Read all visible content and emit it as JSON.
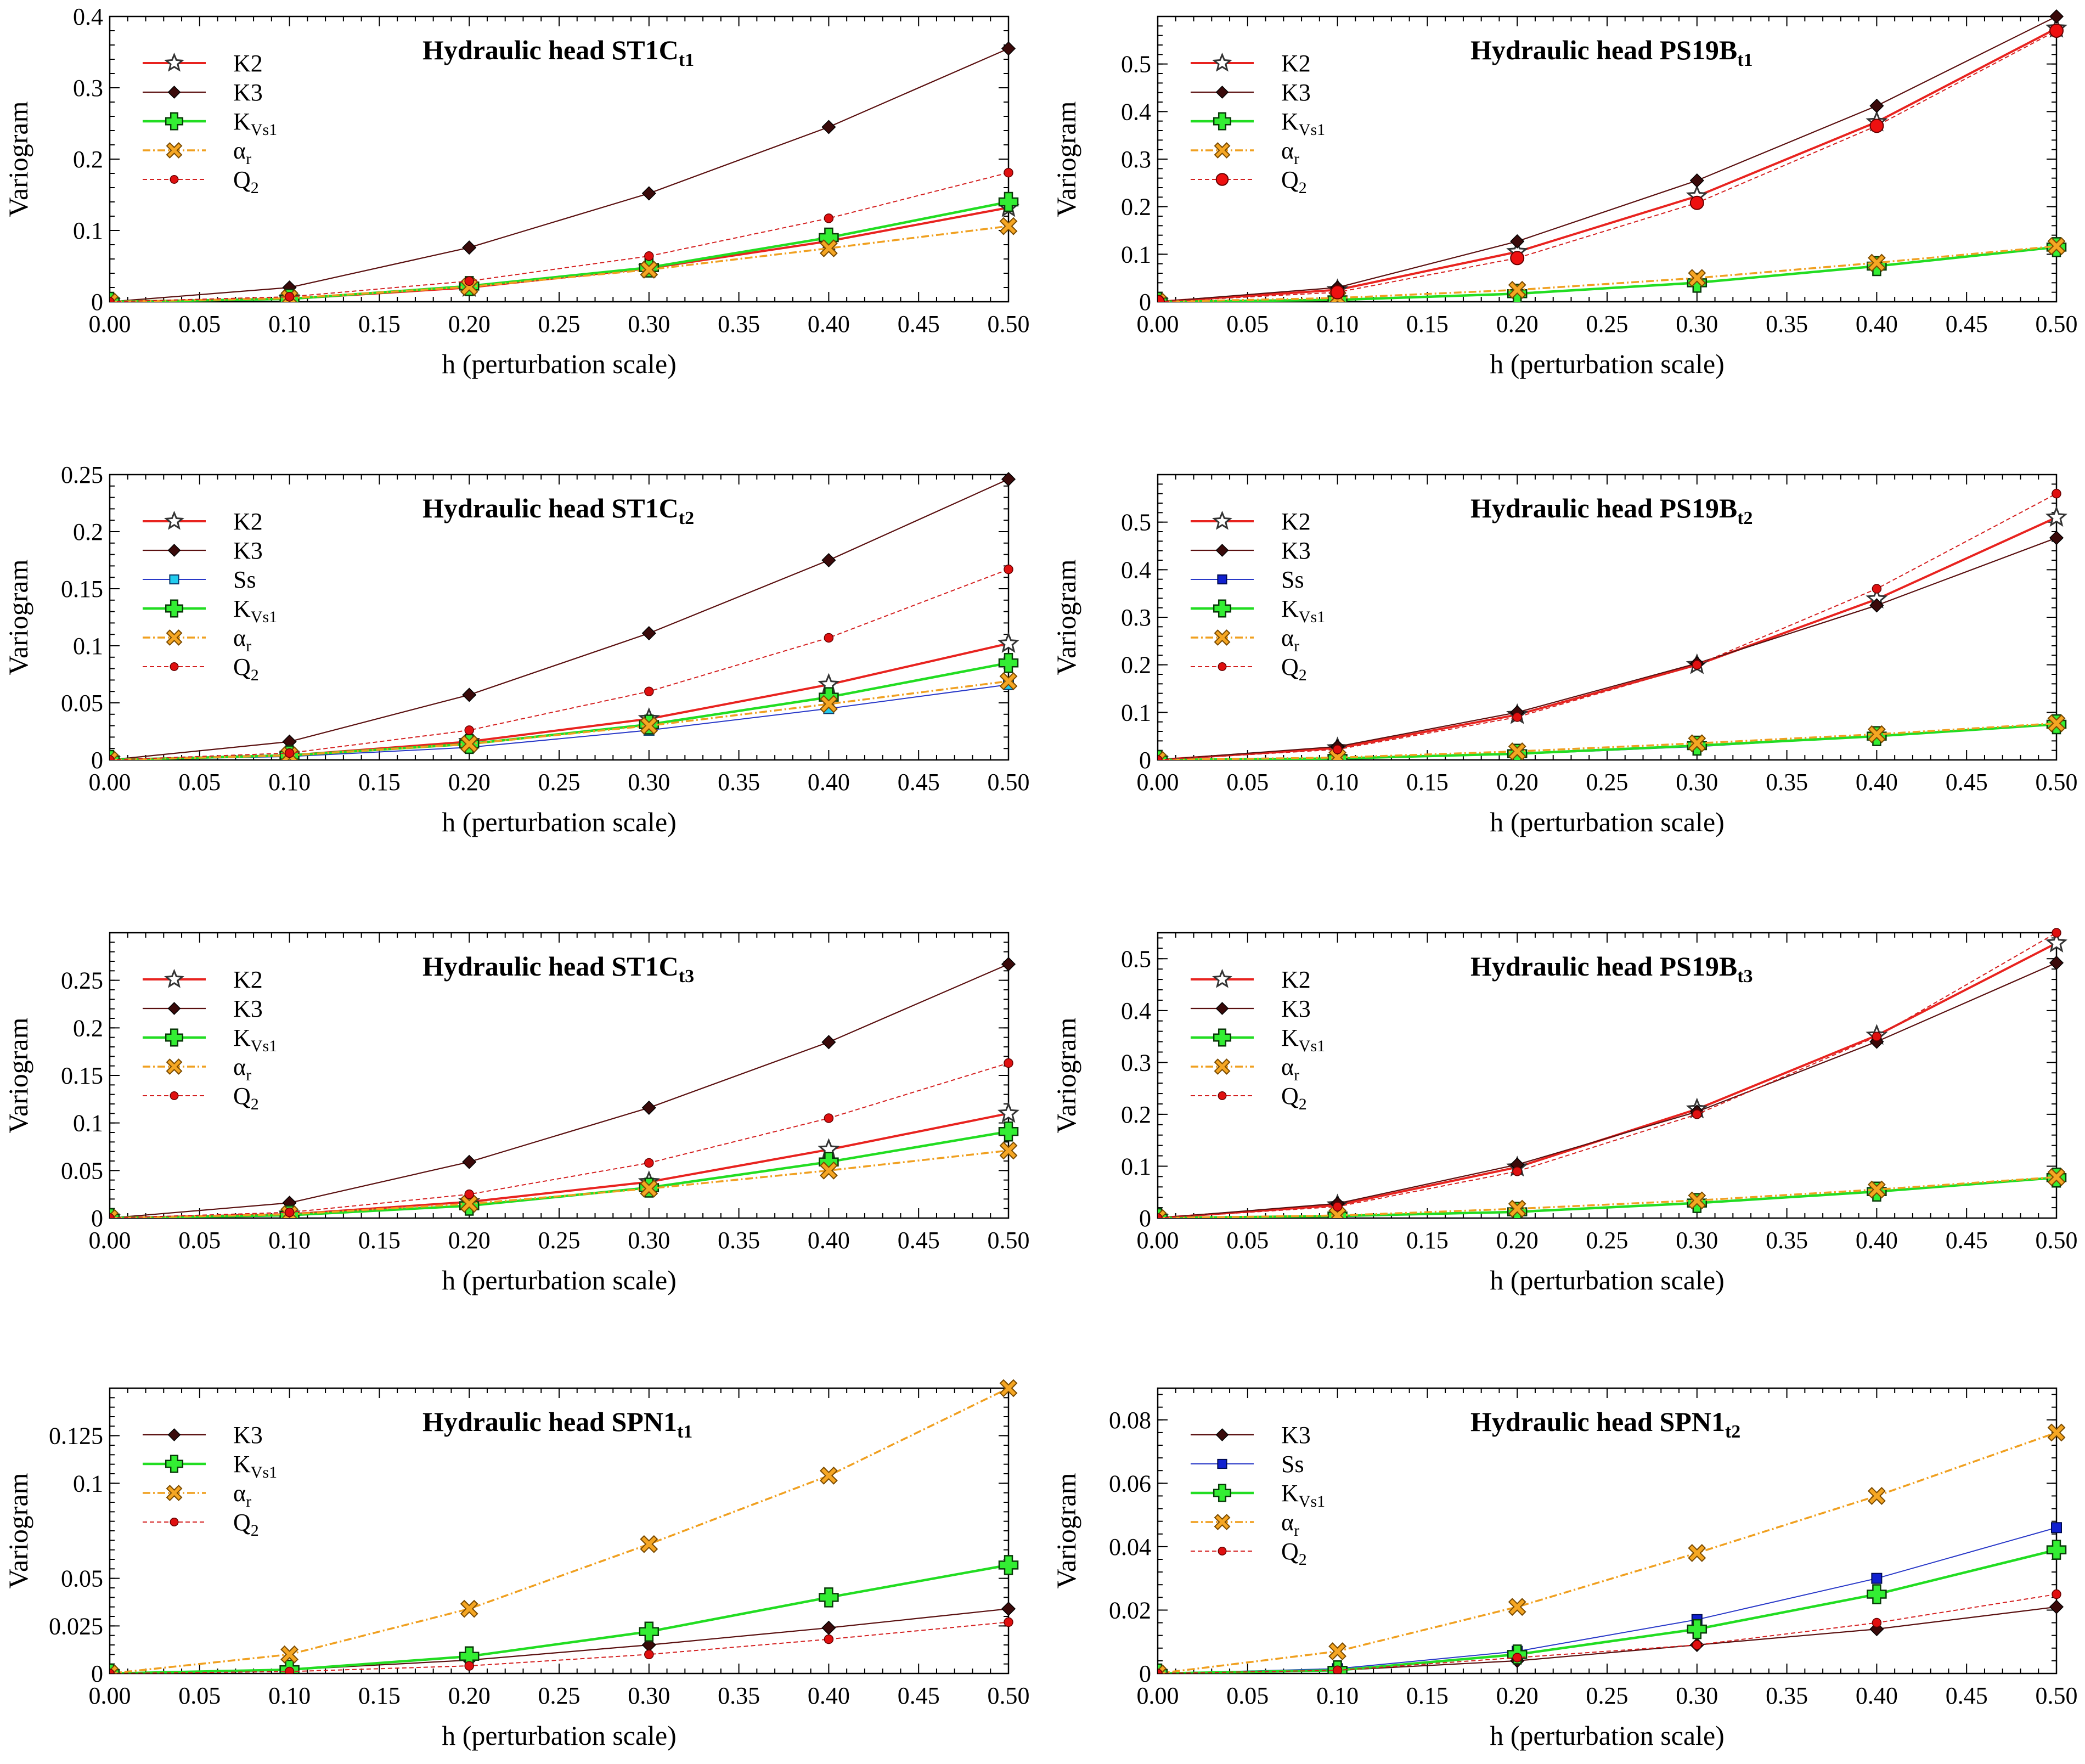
{
  "chart_data": [
    {
      "type": "line",
      "title": {
        "main": "Hydraulic head ST1C",
        "sub": "t1"
      },
      "xlabel": "h (perturbation scale)",
      "ylabel": "Variogram",
      "xlim": [
        0,
        0.5
      ],
      "ylim": [
        0,
        0.4
      ],
      "xticks": [
        "0.00",
        "0.05",
        "0.10",
        "0.15",
        "0.20",
        "0.25",
        "0.30",
        "0.35",
        "0.40",
        "0.45",
        "0.50"
      ],
      "yticks": [
        {
          "v": 0,
          "label": "0"
        },
        {
          "v": 0.1,
          "label": "0.1"
        },
        {
          "v": 0.2,
          "label": "0.2"
        },
        {
          "v": 0.3,
          "label": "0.3"
        },
        {
          "v": 0.4,
          "label": "0.4"
        }
      ],
      "x": [
        0,
        0.1,
        0.2,
        0.3,
        0.4,
        0.5
      ],
      "legend_position": "top-left",
      "series": [
        {
          "name": "K2",
          "sub": "",
          "color": "#e8231f",
          "marker": "star",
          "values": [
            0,
            0.004,
            0.02,
            0.047,
            0.085,
            0.132
          ]
        },
        {
          "name": "K3",
          "sub": "",
          "color": "#5a1010",
          "marker": "diamond",
          "values": [
            0,
            0.02,
            0.076,
            0.152,
            0.245,
            0.355
          ]
        },
        {
          "name": "K",
          "sub": "Vs1",
          "color": "#22dd22",
          "marker": "plus",
          "values": [
            0,
            0.004,
            0.022,
            0.048,
            0.09,
            0.14
          ]
        },
        {
          "name": "α",
          "sub": "r",
          "color": "#f0a020",
          "marker": "xmark",
          "values": [
            0,
            0.005,
            0.021,
            0.045,
            0.075,
            0.106
          ]
        },
        {
          "name": "Q",
          "sub": "2",
          "color": "#d42020",
          "marker": "dot",
          "values": [
            0,
            0.007,
            0.029,
            0.064,
            0.117,
            0.181
          ]
        }
      ]
    },
    {
      "type": "line",
      "title": {
        "main": "Hydraulic head PS19B",
        "sub": "t1"
      },
      "xlabel": "h (perturbation scale)",
      "ylabel": "Variogram",
      "xlim": [
        0,
        0.5
      ],
      "ylim": [
        0,
        0.6
      ],
      "xticks": [
        "0.00",
        "0.05",
        "0.10",
        "0.15",
        "0.20",
        "0.25",
        "0.30",
        "0.35",
        "0.40",
        "0.45",
        "0.50"
      ],
      "yticks": [
        {
          "v": 0,
          "label": "0"
        },
        {
          "v": 0.1,
          "label": "0.1"
        },
        {
          "v": 0.2,
          "label": "0.2"
        },
        {
          "v": 0.3,
          "label": "0.3"
        },
        {
          "v": 0.4,
          "label": "0.4"
        },
        {
          "v": 0.5,
          "label": "0.5"
        }
      ],
      "x": [
        0,
        0.1,
        0.2,
        0.3,
        0.4,
        0.5
      ],
      "legend_position": "top-left",
      "series": [
        {
          "name": "K2",
          "sub": "",
          "color": "#e8231f",
          "marker": "star",
          "values": [
            0,
            0.025,
            0.105,
            0.222,
            0.378,
            0.575
          ]
        },
        {
          "name": "K3",
          "sub": "",
          "color": "#5a1010",
          "marker": "diamond",
          "values": [
            0,
            0.03,
            0.127,
            0.255,
            0.412,
            0.6
          ]
        },
        {
          "name": "K",
          "sub": "Vs1",
          "color": "#22dd22",
          "marker": "plus",
          "values": [
            0,
            0.004,
            0.017,
            0.04,
            0.075,
            0.115
          ]
        },
        {
          "name": "α",
          "sub": "r",
          "color": "#f0a020",
          "marker": "xmark",
          "values": [
            0,
            0.008,
            0.025,
            0.05,
            0.082,
            0.117
          ]
        },
        {
          "name": "Q",
          "sub": "2",
          "color": "#d42020",
          "marker": "bigdot",
          "values": [
            0,
            0.02,
            0.092,
            0.208,
            0.37,
            0.57
          ]
        }
      ]
    },
    {
      "type": "line",
      "title": {
        "main": "Hydraulic head ST1C",
        "sub": "t2"
      },
      "xlabel": "h (perturbation scale)",
      "ylabel": "Variogram",
      "xlim": [
        0,
        0.5
      ],
      "ylim": [
        0,
        0.25
      ],
      "xticks": [
        "0.00",
        "0.05",
        "0.10",
        "0.15",
        "0.20",
        "0.25",
        "0.30",
        "0.35",
        "0.40",
        "0.45",
        "0.50"
      ],
      "yticks": [
        {
          "v": 0,
          "label": "0"
        },
        {
          "v": 0.05,
          "label": "0.05"
        },
        {
          "v": 0.1,
          "label": "0.1"
        },
        {
          "v": 0.15,
          "label": "0.15"
        },
        {
          "v": 0.2,
          "label": "0.2"
        },
        {
          "v": 0.25,
          "label": "0.25"
        }
      ],
      "x": [
        0,
        0.1,
        0.2,
        0.3,
        0.4,
        0.5
      ],
      "legend_position": "top-left",
      "series": [
        {
          "name": "K2",
          "sub": "",
          "color": "#e8231f",
          "marker": "star",
          "values": [
            0,
            0.004,
            0.016,
            0.036,
            0.066,
            0.102
          ]
        },
        {
          "name": "K3",
          "sub": "",
          "color": "#5a1010",
          "marker": "diamond",
          "values": [
            0,
            0.016,
            0.057,
            0.111,
            0.175,
            0.246
          ]
        },
        {
          "name": "Ss",
          "sub": "",
          "color": "#2838c8",
          "marker": "cyansquare",
          "values": [
            0,
            0.003,
            0.011,
            0.026,
            0.045,
            0.066
          ]
        },
        {
          "name": "K",
          "sub": "Vs1",
          "color": "#22dd22",
          "marker": "plus",
          "values": [
            0,
            0.004,
            0.014,
            0.031,
            0.055,
            0.085
          ]
        },
        {
          "name": "α",
          "sub": "r",
          "color": "#f0a020",
          "marker": "xmark",
          "values": [
            0,
            0.004,
            0.014,
            0.03,
            0.049,
            0.069
          ]
        },
        {
          "name": "Q",
          "sub": "2",
          "color": "#d42020",
          "marker": "dot",
          "values": [
            0,
            0.006,
            0.026,
            0.06,
            0.107,
            0.167
          ]
        }
      ]
    },
    {
      "type": "line",
      "title": {
        "main": "Hydraulic head PS19B",
        "sub": "t2"
      },
      "xlabel": "h (perturbation scale)",
      "ylabel": "Variogram",
      "xlim": [
        0,
        0.5
      ],
      "ylim": [
        0,
        0.6
      ],
      "xticks": [
        "0.00",
        "0.05",
        "0.10",
        "0.15",
        "0.20",
        "0.25",
        "0.30",
        "0.35",
        "0.40",
        "0.45",
        "0.50"
      ],
      "yticks": [
        {
          "v": 0,
          "label": "0"
        },
        {
          "v": 0.1,
          "label": "0.1"
        },
        {
          "v": 0.2,
          "label": "0.2"
        },
        {
          "v": 0.3,
          "label": "0.3"
        },
        {
          "v": 0.4,
          "label": "0.4"
        },
        {
          "v": 0.5,
          "label": "0.5"
        }
      ],
      "x": [
        0,
        0.1,
        0.2,
        0.3,
        0.4,
        0.5
      ],
      "legend_position": "top-left",
      "series": [
        {
          "name": "K2",
          "sub": "",
          "color": "#e8231f",
          "marker": "star",
          "values": [
            0,
            0.025,
            0.095,
            0.2,
            0.338,
            0.51
          ]
        },
        {
          "name": "K3",
          "sub": "",
          "color": "#5a1010",
          "marker": "diamond",
          "values": [
            0,
            0.028,
            0.1,
            0.203,
            0.325,
            0.467
          ]
        },
        {
          "name": "Ss",
          "sub": "",
          "color": "#2838c8",
          "marker": "bluesquare",
          "values": [
            0,
            0.003,
            0.012,
            0.028,
            0.05,
            0.075
          ]
        },
        {
          "name": "K",
          "sub": "Vs1",
          "color": "#22dd22",
          "marker": "plus",
          "values": [
            0,
            0.003,
            0.013,
            0.03,
            0.05,
            0.075
          ]
        },
        {
          "name": "α",
          "sub": "r",
          "color": "#f0a020",
          "marker": "xmark",
          "values": [
            0,
            0.005,
            0.018,
            0.035,
            0.054,
            0.077
          ]
        },
        {
          "name": "Q",
          "sub": "2",
          "color": "#d42020",
          "marker": "dot",
          "values": [
            0,
            0.022,
            0.09,
            0.2,
            0.36,
            0.56
          ]
        }
      ]
    },
    {
      "type": "line",
      "title": {
        "main": "Hydraulic head ST1C",
        "sub": "t3"
      },
      "xlabel": "h (perturbation scale)",
      "ylabel": "Variogram",
      "xlim": [
        0,
        0.5
      ],
      "ylim": [
        0,
        0.3
      ],
      "xticks": [
        "0.00",
        "0.05",
        "0.10",
        "0.15",
        "0.20",
        "0.25",
        "0.30",
        "0.35",
        "0.40",
        "0.45",
        "0.50"
      ],
      "yticks": [
        {
          "v": 0,
          "label": "0"
        },
        {
          "v": 0.05,
          "label": "0.05"
        },
        {
          "v": 0.1,
          "label": "0.1"
        },
        {
          "v": 0.15,
          "label": "0.15"
        },
        {
          "v": 0.2,
          "label": "0.2"
        },
        {
          "v": 0.25,
          "label": "0.25"
        }
      ],
      "x": [
        0,
        0.1,
        0.2,
        0.3,
        0.4,
        0.5
      ],
      "legend_position": "top-left",
      "series": [
        {
          "name": "K2",
          "sub": "",
          "color": "#e8231f",
          "marker": "star",
          "values": [
            0,
            0.004,
            0.017,
            0.038,
            0.072,
            0.11
          ]
        },
        {
          "name": "K3",
          "sub": "",
          "color": "#5a1010",
          "marker": "diamond",
          "values": [
            0,
            0.016,
            0.059,
            0.116,
            0.185,
            0.267
          ]
        },
        {
          "name": "K",
          "sub": "Vs1",
          "color": "#22dd22",
          "marker": "plus",
          "values": [
            0,
            0.003,
            0.013,
            0.032,
            0.059,
            0.091
          ]
        },
        {
          "name": "α",
          "sub": "r",
          "color": "#f0a020",
          "marker": "xmark",
          "values": [
            0,
            0.004,
            0.015,
            0.031,
            0.05,
            0.071
          ]
        },
        {
          "name": "Q",
          "sub": "2",
          "color": "#d42020",
          "marker": "dot",
          "values": [
            0,
            0.006,
            0.025,
            0.058,
            0.105,
            0.163
          ]
        }
      ]
    },
    {
      "type": "line",
      "title": {
        "main": "Hydraulic head PS19B",
        "sub": "t3"
      },
      "xlabel": "h (perturbation scale)",
      "ylabel": "Variogram",
      "xlim": [
        0,
        0.5
      ],
      "ylim": [
        0,
        0.55
      ],
      "xticks": [
        "0.00",
        "0.05",
        "0.10",
        "0.15",
        "0.20",
        "0.25",
        "0.30",
        "0.35",
        "0.40",
        "0.45",
        "0.50"
      ],
      "yticks": [
        {
          "v": 0,
          "label": "0"
        },
        {
          "v": 0.1,
          "label": "0.1"
        },
        {
          "v": 0.2,
          "label": "0.2"
        },
        {
          "v": 0.3,
          "label": "0.3"
        },
        {
          "v": 0.4,
          "label": "0.4"
        },
        {
          "v": 0.5,
          "label": "0.5"
        }
      ],
      "x": [
        0,
        0.1,
        0.2,
        0.3,
        0.4,
        0.5
      ],
      "legend_position": "top-left",
      "series": [
        {
          "name": "K2",
          "sub": "",
          "color": "#e8231f",
          "marker": "star",
          "values": [
            0,
            0.025,
            0.098,
            0.21,
            0.352,
            0.53
          ]
        },
        {
          "name": "K3",
          "sub": "",
          "color": "#5a1010",
          "marker": "diamond",
          "values": [
            0,
            0.028,
            0.103,
            0.205,
            0.34,
            0.492
          ]
        },
        {
          "name": "K",
          "sub": "Vs1",
          "color": "#22dd22",
          "marker": "plus",
          "values": [
            0,
            0.004,
            0.012,
            0.029,
            0.051,
            0.078
          ]
        },
        {
          "name": "α",
          "sub": "r",
          "color": "#f0a020",
          "marker": "xmark",
          "values": [
            0,
            0.005,
            0.018,
            0.034,
            0.055,
            0.079
          ]
        },
        {
          "name": "Q",
          "sub": "2",
          "color": "#d42020",
          "marker": "dot",
          "values": [
            0,
            0.022,
            0.09,
            0.2,
            0.35,
            0.55
          ]
        }
      ]
    },
    {
      "type": "line",
      "title": {
        "main": "Hydraulic head SPN1",
        "sub": "t1"
      },
      "xlabel": "h (perturbation scale)",
      "ylabel": "Variogram",
      "xlim": [
        0,
        0.5
      ],
      "ylim": [
        0,
        0.15
      ],
      "xticks": [
        "0.00",
        "0.05",
        "0.10",
        "0.15",
        "0.20",
        "0.25",
        "0.30",
        "0.35",
        "0.40",
        "0.45",
        "0.50"
      ],
      "yticks": [
        {
          "v": 0,
          "label": "0"
        },
        {
          "v": 0.025,
          "label": "0.025"
        },
        {
          "v": 0.05,
          "label": "0.05"
        },
        {
          "v": 0.1,
          "label": "0.1"
        },
        {
          "v": 0.125,
          "label": "0.125"
        }
      ],
      "x": [
        0,
        0.1,
        0.2,
        0.3,
        0.4,
        0.5
      ],
      "legend_position": "top-left",
      "series": [
        {
          "name": "K3",
          "sub": "",
          "color": "#5a1010",
          "marker": "diamond",
          "values": [
            0,
            0.002,
            0.007,
            0.015,
            0.024,
            0.034
          ]
        },
        {
          "name": "K",
          "sub": "Vs1",
          "color": "#22dd22",
          "marker": "plus",
          "values": [
            0,
            0.002,
            0.009,
            0.022,
            0.04,
            0.057
          ]
        },
        {
          "name": "α",
          "sub": "r",
          "color": "#f0a020",
          "marker": "xmark",
          "values": [
            0,
            0.01,
            0.034,
            0.068,
            0.104,
            0.15
          ]
        },
        {
          "name": "Q",
          "sub": "2",
          "color": "#d42020",
          "marker": "dot",
          "values": [
            0,
            0.001,
            0.004,
            0.01,
            0.018,
            0.027
          ]
        }
      ]
    },
    {
      "type": "line",
      "title": {
        "main": "Hydraulic head SPN1",
        "sub": "t2"
      },
      "xlabel": "h (perturbation scale)",
      "ylabel": "Variogram",
      "xlim": [
        0,
        0.5
      ],
      "ylim": [
        0,
        0.09
      ],
      "xticks": [
        "0.00",
        "0.05",
        "0.10",
        "0.15",
        "0.20",
        "0.25",
        "0.30",
        "0.35",
        "0.40",
        "0.45",
        "0.50"
      ],
      "yticks": [
        {
          "v": 0,
          "label": "0"
        },
        {
          "v": 0.02,
          "label": "0.02"
        },
        {
          "v": 0.04,
          "label": "0.04"
        },
        {
          "v": 0.06,
          "label": "0.06"
        },
        {
          "v": 0.08,
          "label": "0.08"
        }
      ],
      "x": [
        0,
        0.1,
        0.2,
        0.3,
        0.4,
        0.5
      ],
      "legend_position": "top-left",
      "series": [
        {
          "name": "K3",
          "sub": "",
          "color": "#5a1010",
          "marker": "diamond",
          "values": [
            0,
            0.001,
            0.004,
            0.009,
            0.014,
            0.021
          ]
        },
        {
          "name": "Ss",
          "sub": "",
          "color": "#2838c8",
          "marker": "bluesquare",
          "values": [
            0,
            0.0015,
            0.007,
            0.017,
            0.03,
            0.046
          ]
        },
        {
          "name": "K",
          "sub": "Vs1",
          "color": "#22dd22",
          "marker": "plus",
          "values": [
            0,
            0.001,
            0.006,
            0.014,
            0.025,
            0.039
          ]
        },
        {
          "name": "α",
          "sub": "r",
          "color": "#f0a020",
          "marker": "xmark",
          "values": [
            0,
            0.007,
            0.021,
            0.038,
            0.056,
            0.076
          ]
        },
        {
          "name": "Q",
          "sub": "2",
          "color": "#d42020",
          "marker": "dot",
          "values": [
            0,
            0.001,
            0.005,
            0.009,
            0.016,
            0.025
          ]
        }
      ]
    }
  ]
}
